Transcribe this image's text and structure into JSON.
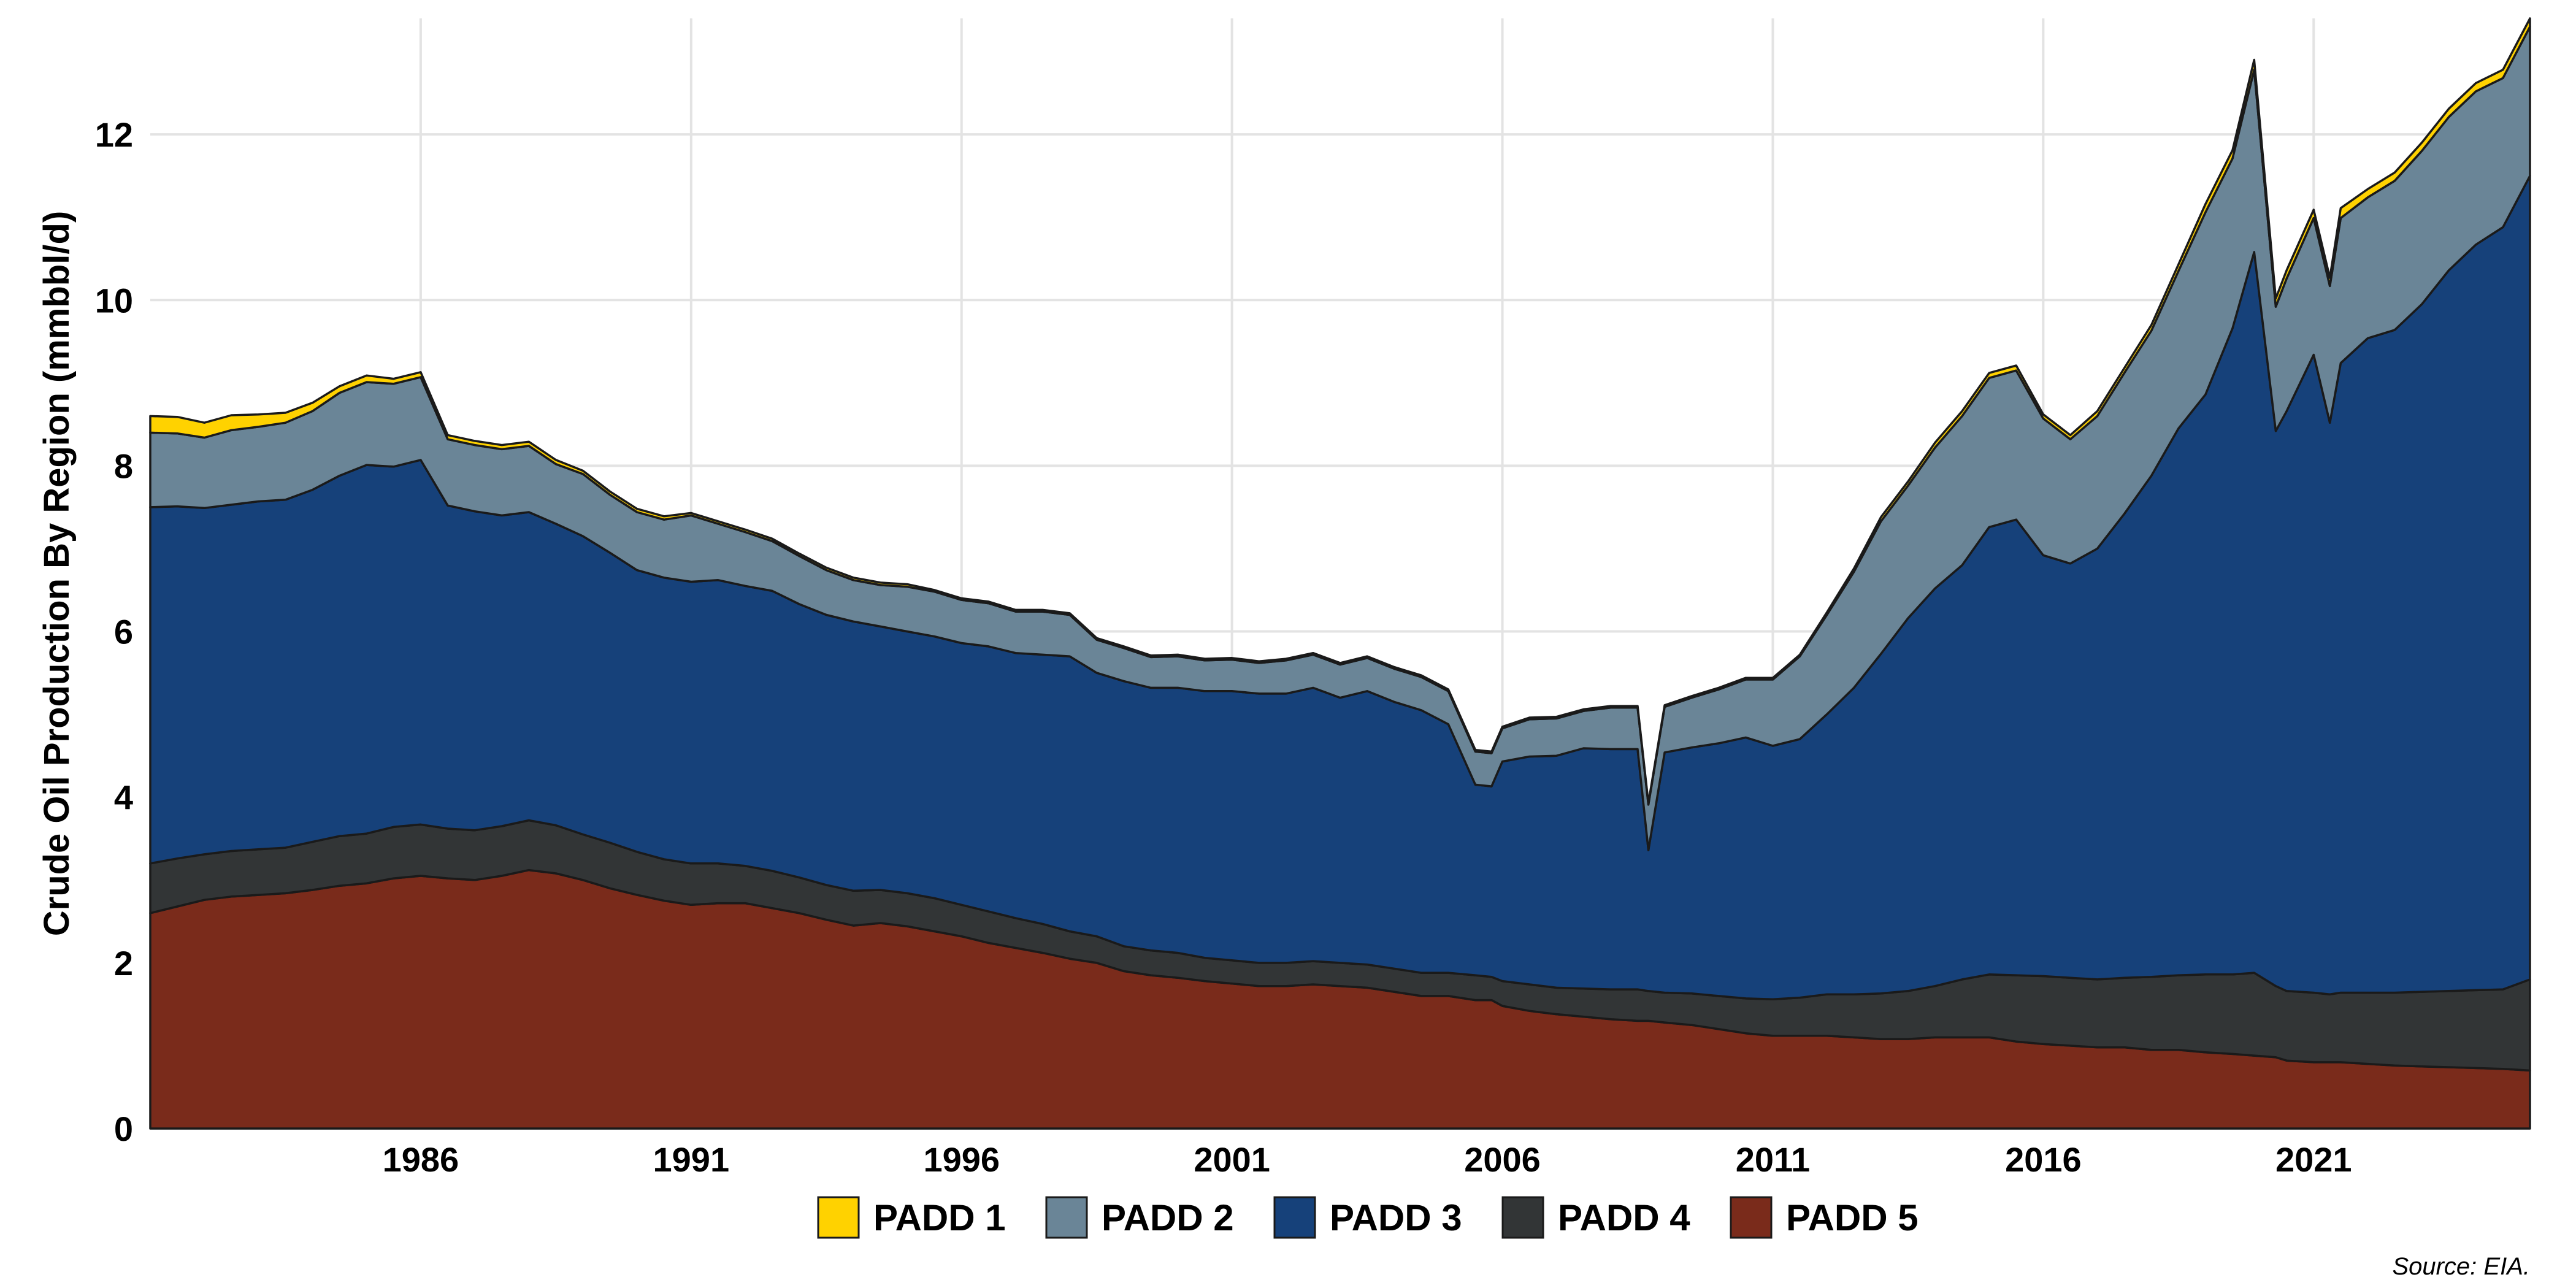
{
  "chart_data": {
    "type": "area",
    "stacked": true,
    "title": "",
    "xlabel": "",
    "ylabel": "Crude Oil Production By Region (mmbbl/d)",
    "xlim": [
      1981.0,
      2025.0
    ],
    "ylim": [
      0,
      13.4
    ],
    "x_ticks": [
      1986,
      1991,
      1996,
      2001,
      2006,
      2011,
      2016,
      2021
    ],
    "y_ticks": [
      0,
      2,
      4,
      6,
      8,
      10,
      12
    ],
    "grid": true,
    "legend_position": "bottom",
    "source": "Source: EIA.",
    "x": [
      1981.0,
      1981.5,
      1982.0,
      1982.5,
      1983.0,
      1983.5,
      1984.0,
      1984.5,
      1985.0,
      1985.5,
      1986.0,
      1986.5,
      1987.0,
      1987.5,
      1988.0,
      1988.5,
      1989.0,
      1989.5,
      1990.0,
      1990.5,
      1991.0,
      1991.5,
      1992.0,
      1992.5,
      1993.0,
      1993.5,
      1994.0,
      1994.5,
      1995.0,
      1995.5,
      1996.0,
      1996.5,
      1997.0,
      1997.5,
      1998.0,
      1998.5,
      1999.0,
      1999.5,
      2000.0,
      2000.5,
      2001.0,
      2001.5,
      2002.0,
      2002.5,
      2003.0,
      2003.5,
      2004.0,
      2004.5,
      2005.0,
      2005.5,
      2005.8,
      2006.0,
      2006.5,
      2007.0,
      2007.5,
      2008.0,
      2008.5,
      2008.7,
      2009.0,
      2009.5,
      2010.0,
      2010.5,
      2011.0,
      2011.5,
      2012.0,
      2012.5,
      2013.0,
      2013.5,
      2014.0,
      2014.5,
      2015.0,
      2015.5,
      2016.0,
      2016.5,
      2017.0,
      2017.5,
      2018.0,
      2018.5,
      2019.0,
      2019.5,
      2019.9,
      2020.3,
      2020.5,
      2021.0,
      2021.3,
      2021.5,
      2022.0,
      2022.5,
      2023.0,
      2023.5,
      2024.0,
      2024.5,
      2025.0
    ],
    "series": [
      {
        "name": "PADD 5",
        "color": "#7a2b1b",
        "values": [
          2.6,
          2.68,
          2.76,
          2.8,
          2.82,
          2.84,
          2.88,
          2.93,
          2.96,
          3.02,
          3.05,
          3.02,
          3.0,
          3.05,
          3.12,
          3.08,
          3.0,
          2.9,
          2.82,
          2.75,
          2.7,
          2.72,
          2.72,
          2.66,
          2.6,
          2.52,
          2.45,
          2.48,
          2.44,
          2.38,
          2.32,
          2.24,
          2.18,
          2.12,
          2.05,
          2.0,
          1.9,
          1.85,
          1.82,
          1.78,
          1.75,
          1.72,
          1.72,
          1.74,
          1.72,
          1.7,
          1.65,
          1.6,
          1.6,
          1.55,
          1.55,
          1.48,
          1.42,
          1.38,
          1.35,
          1.32,
          1.3,
          1.3,
          1.28,
          1.25,
          1.2,
          1.15,
          1.12,
          1.12,
          1.12,
          1.1,
          1.08,
          1.08,
          1.1,
          1.1,
          1.1,
          1.05,
          1.02,
          1.0,
          0.98,
          0.98,
          0.95,
          0.95,
          0.92,
          0.9,
          0.88,
          0.86,
          0.82,
          0.8,
          0.8,
          0.8,
          0.78,
          0.76,
          0.75,
          0.74,
          0.73,
          0.72,
          0.7
        ]
      },
      {
        "name": "PADD 4",
        "color": "#323536",
        "values": [
          0.6,
          0.58,
          0.55,
          0.55,
          0.55,
          0.55,
          0.58,
          0.6,
          0.6,
          0.62,
          0.62,
          0.6,
          0.6,
          0.6,
          0.6,
          0.58,
          0.55,
          0.55,
          0.52,
          0.5,
          0.5,
          0.48,
          0.45,
          0.45,
          0.43,
          0.42,
          0.42,
          0.4,
          0.4,
          0.4,
          0.38,
          0.38,
          0.36,
          0.35,
          0.33,
          0.32,
          0.3,
          0.3,
          0.3,
          0.28,
          0.28,
          0.28,
          0.28,
          0.28,
          0.28,
          0.28,
          0.28,
          0.28,
          0.28,
          0.3,
          0.28,
          0.3,
          0.32,
          0.32,
          0.34,
          0.36,
          0.38,
          0.36,
          0.36,
          0.38,
          0.4,
          0.42,
          0.44,
          0.46,
          0.5,
          0.52,
          0.55,
          0.58,
          0.62,
          0.7,
          0.76,
          0.8,
          0.82,
          0.82,
          0.82,
          0.84,
          0.88,
          0.9,
          0.94,
          0.96,
          1.0,
          0.86,
          0.84,
          0.84,
          0.82,
          0.84,
          0.86,
          0.88,
          0.9,
          0.92,
          0.94,
          0.96,
          1.1
        ]
      },
      {
        "name": "PADD 3",
        "color": "#16417a",
        "values": [
          4.3,
          4.25,
          4.18,
          4.18,
          4.2,
          4.2,
          4.25,
          4.35,
          4.45,
          4.35,
          4.4,
          3.9,
          3.85,
          3.75,
          3.72,
          3.64,
          3.6,
          3.5,
          3.4,
          3.4,
          3.4,
          3.42,
          3.38,
          3.38,
          3.3,
          3.26,
          3.25,
          3.18,
          3.16,
          3.16,
          3.16,
          3.2,
          3.2,
          3.25,
          3.32,
          3.18,
          3.2,
          3.17,
          3.2,
          3.22,
          3.25,
          3.25,
          3.25,
          3.3,
          3.2,
          3.3,
          3.22,
          3.17,
          3.0,
          2.3,
          2.3,
          2.65,
          2.75,
          2.8,
          2.9,
          2.9,
          2.9,
          1.7,
          2.9,
          2.97,
          3.05,
          3.15,
          3.06,
          3.12,
          3.38,
          3.7,
          4.1,
          4.5,
          4.8,
          5.0,
          5.4,
          5.5,
          5.08,
          5.0,
          5.2,
          5.6,
          6.05,
          6.6,
          7.0,
          7.8,
          8.7,
          6.7,
          7.0,
          7.7,
          6.9,
          7.6,
          7.9,
          8.0,
          8.3,
          8.7,
          9.0,
          9.2,
          9.7
        ]
      },
      {
        "name": "PADD 2",
        "color": "#6a8597",
        "values": [
          0.9,
          0.88,
          0.85,
          0.9,
          0.9,
          0.93,
          0.95,
          1.0,
          1.0,
          1.0,
          1.0,
          0.8,
          0.8,
          0.8,
          0.8,
          0.72,
          0.75,
          0.7,
          0.7,
          0.7,
          0.8,
          0.68,
          0.65,
          0.6,
          0.58,
          0.54,
          0.5,
          0.5,
          0.54,
          0.54,
          0.52,
          0.52,
          0.5,
          0.52,
          0.5,
          0.4,
          0.4,
          0.37,
          0.38,
          0.37,
          0.38,
          0.37,
          0.4,
          0.4,
          0.4,
          0.4,
          0.4,
          0.4,
          0.4,
          0.4,
          0.4,
          0.4,
          0.45,
          0.45,
          0.45,
          0.5,
          0.5,
          0.55,
          0.55,
          0.6,
          0.65,
          0.7,
          0.8,
          1.0,
          1.2,
          1.4,
          1.6,
          1.6,
          1.7,
          1.8,
          1.8,
          1.8,
          1.65,
          1.5,
          1.6,
          1.7,
          1.75,
          1.9,
          2.2,
          2.05,
          2.2,
          1.5,
          1.6,
          1.65,
          1.65,
          1.75,
          1.7,
          1.8,
          1.85,
          1.85,
          1.85,
          1.8,
          1.8
        ]
      },
      {
        "name": "PADD 1",
        "color": "#ffd200",
        "values": [
          0.2,
          0.2,
          0.18,
          0.18,
          0.15,
          0.12,
          0.1,
          0.08,
          0.08,
          0.06,
          0.06,
          0.05,
          0.05,
          0.05,
          0.05,
          0.05,
          0.04,
          0.04,
          0.04,
          0.04,
          0.03,
          0.03,
          0.03,
          0.03,
          0.03,
          0.03,
          0.03,
          0.03,
          0.03,
          0.02,
          0.02,
          0.02,
          0.02,
          0.02,
          0.02,
          0.02,
          0.02,
          0.02,
          0.02,
          0.02,
          0.02,
          0.02,
          0.02,
          0.02,
          0.02,
          0.02,
          0.02,
          0.02,
          0.02,
          0.02,
          0.02,
          0.02,
          0.02,
          0.02,
          0.02,
          0.02,
          0.02,
          0.02,
          0.02,
          0.02,
          0.02,
          0.02,
          0.02,
          0.02,
          0.03,
          0.04,
          0.05,
          0.05,
          0.06,
          0.06,
          0.06,
          0.06,
          0.05,
          0.05,
          0.06,
          0.06,
          0.07,
          0.08,
          0.1,
          0.1,
          0.12,
          0.1,
          0.1,
          0.1,
          0.1,
          0.12,
          0.1,
          0.1,
          0.1,
          0.1,
          0.1,
          0.1,
          0.1
        ]
      }
    ],
    "legend_order": [
      "PADD 1",
      "PADD 2",
      "PADD 3",
      "PADD 4",
      "PADD 5"
    ]
  }
}
